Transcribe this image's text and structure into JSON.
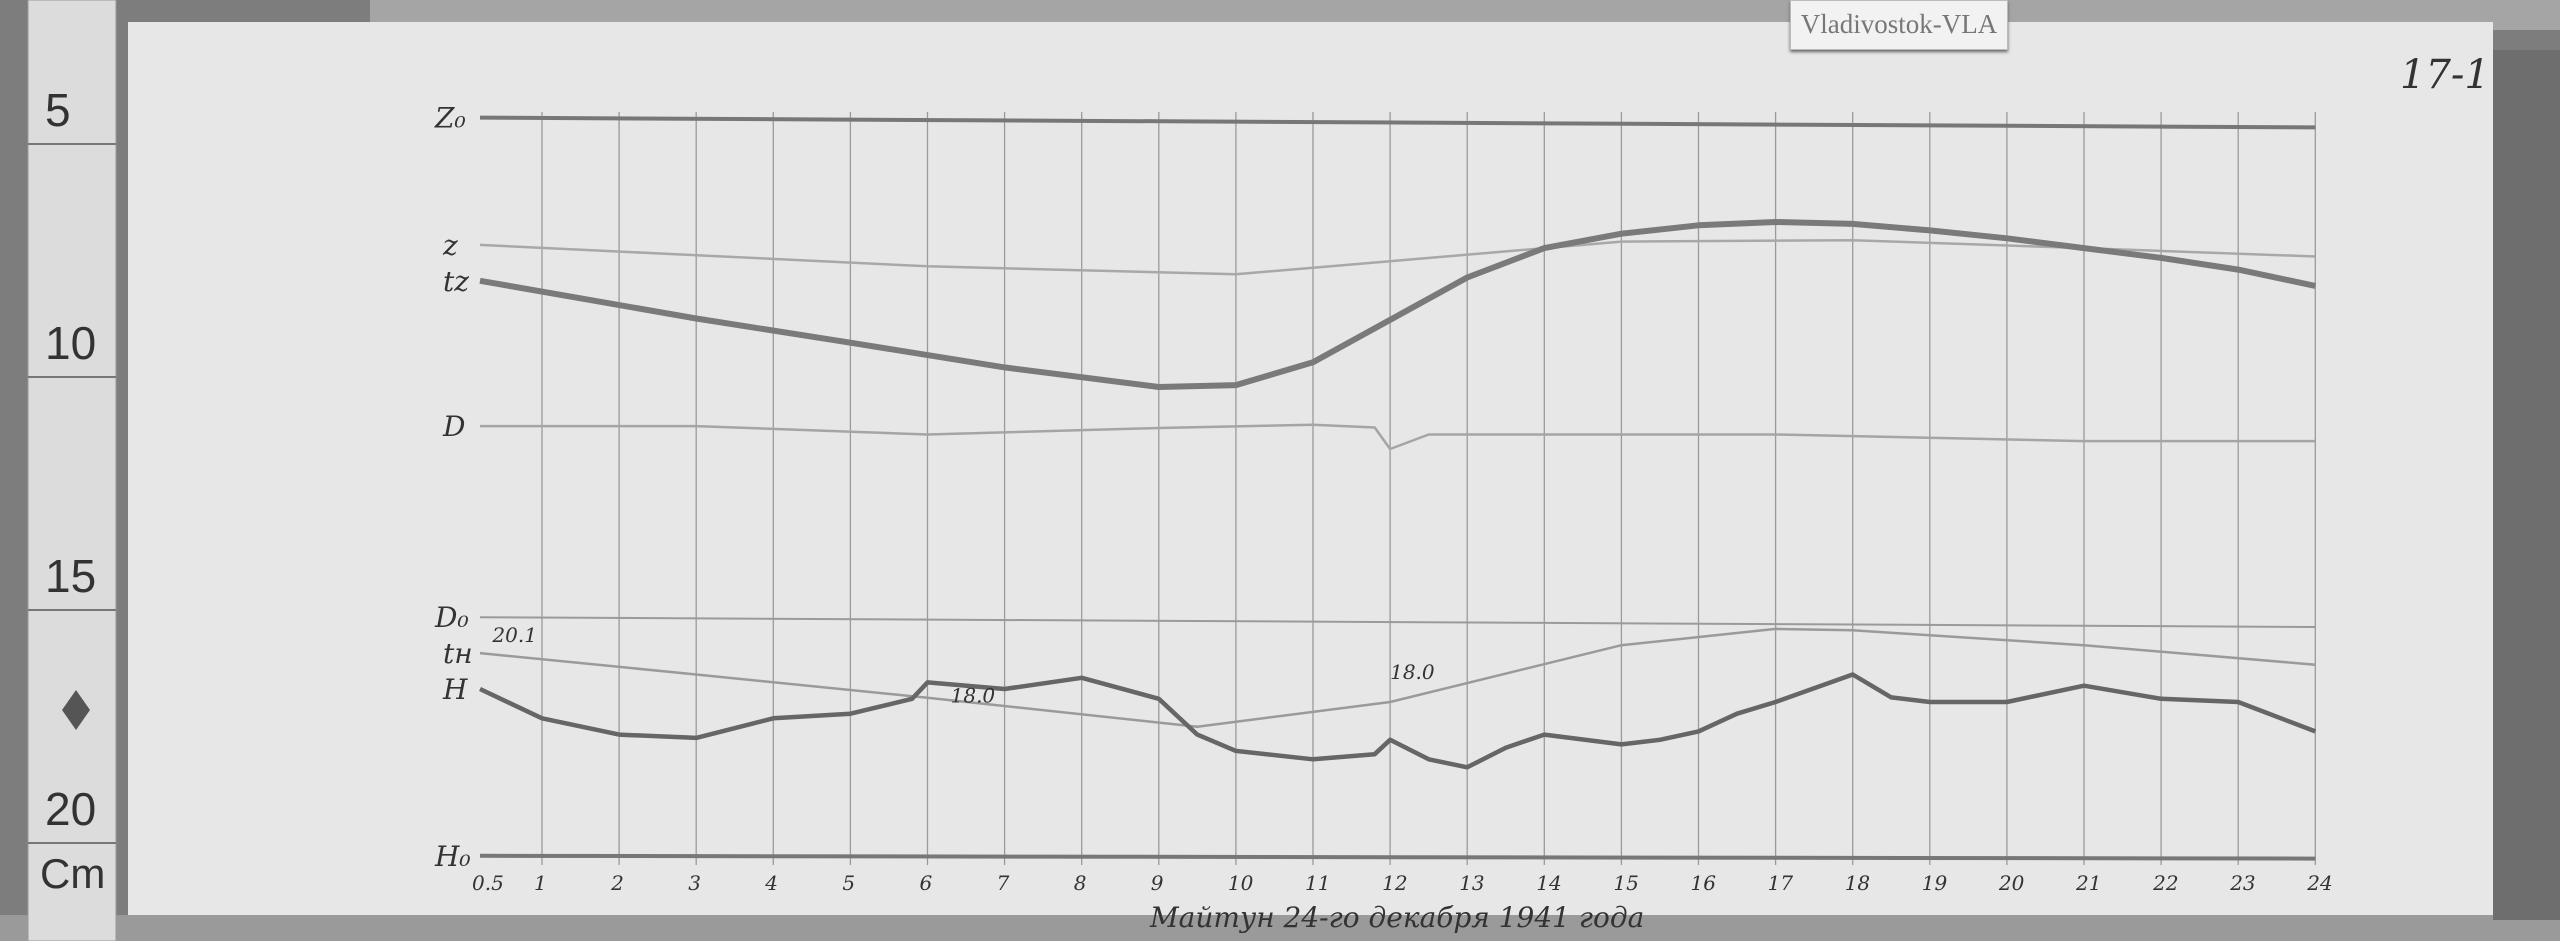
{
  "station_label": "Vladivostok-VLA",
  "sheet_number": "17-1",
  "ruler": {
    "marks": [
      "5",
      "10",
      "15",
      "20"
    ],
    "unit": "Cm"
  },
  "chart_data": {
    "type": "line",
    "title": "",
    "caption": "Майтун 24-го декабря 1941 года",
    "xlabel": "",
    "ylabel": "",
    "x_unit": "hour",
    "y_unit": "cm (ruler)",
    "xlim": [
      0.5,
      24
    ],
    "ylim": [
      5,
      21.5
    ],
    "y_inverted": true,
    "grid": "vertical hourly lines",
    "x_ticks": [
      "0.5",
      "1",
      "2",
      "3",
      "4",
      "5",
      "6",
      "7",
      "8",
      "9",
      "10",
      "11",
      "12",
      "13",
      "14",
      "15",
      "16",
      "17",
      "18",
      "19",
      "20",
      "21",
      "22",
      "23",
      "24"
    ],
    "baselines": [
      {
        "name": "Z₀",
        "x": [
          0.5,
          24
        ],
        "y": [
          5.25,
          5.46
        ]
      },
      {
        "name": "D₀",
        "x": [
          0.5,
          24
        ],
        "y": [
          15.97,
          16.18
        ]
      },
      {
        "name": "H₀",
        "x": [
          0.5,
          24
        ],
        "y": [
          21.09,
          21.15
        ]
      }
    ],
    "series": [
      {
        "name": "z",
        "x": [
          0.5,
          6,
          10,
          12,
          15,
          18,
          21,
          24
        ],
        "y": [
          7.98,
          8.44,
          8.61,
          8.33,
          7.91,
          7.88,
          8.05,
          8.23
        ]
      },
      {
        "name": "tz",
        "x": [
          0.5,
          3,
          5,
          7,
          9,
          10,
          11,
          12,
          13,
          14,
          15,
          16,
          17,
          18,
          19,
          20,
          21,
          22,
          23,
          24
        ],
        "y": [
          8.75,
          9.56,
          10.08,
          10.61,
          11.03,
          10.99,
          10.5,
          9.59,
          8.68,
          8.05,
          7.74,
          7.56,
          7.49,
          7.53,
          7.67,
          7.84,
          8.05,
          8.26,
          8.51,
          8.86
        ]
      },
      {
        "name": "D",
        "x": [
          0.5,
          3,
          6,
          9,
          11,
          11.8,
          12,
          12.5,
          15,
          17,
          21,
          24
        ],
        "y": [
          11.87,
          11.87,
          12.05,
          11.91,
          11.84,
          11.9,
          12.36,
          12.05,
          12.05,
          12.05,
          12.19,
          12.19
        ]
      },
      {
        "name": "tн",
        "x": [
          0.5,
          3,
          6,
          9.5,
          12,
          15,
          17,
          18,
          21,
          24
        ],
        "y": [
          16.74,
          17.2,
          17.7,
          18.32,
          17.79,
          16.57,
          16.22,
          16.25,
          16.57,
          16.99
        ]
      },
      {
        "name": "H",
        "x": [
          0.5,
          1,
          2,
          3,
          4,
          5,
          5.8,
          6,
          7,
          8,
          9,
          9.5,
          10,
          11,
          11.8,
          12,
          12.5,
          13,
          13.5,
          14,
          15,
          15.5,
          16,
          16.5,
          17,
          18,
          18.5,
          19,
          20,
          21,
          22,
          23,
          24
        ],
        "y": [
          17.51,
          18.14,
          18.49,
          18.56,
          18.14,
          18.04,
          17.72,
          17.37,
          17.51,
          17.27,
          17.72,
          18.49,
          18.84,
          19.02,
          18.91,
          18.6,
          19.02,
          19.19,
          18.77,
          18.49,
          18.7,
          18.6,
          18.42,
          18.04,
          17.79,
          17.2,
          17.69,
          17.79,
          17.79,
          17.44,
          17.72,
          17.79,
          18.42
        ]
      }
    ],
    "annotations": [
      {
        "text": "20.1",
        "x": 0.6,
        "y": 16.5
      },
      {
        "text": "18.0",
        "x": 6.3,
        "y": 17.8
      },
      {
        "text": "18.0",
        "x": 12,
        "y": 17.3
      }
    ]
  }
}
